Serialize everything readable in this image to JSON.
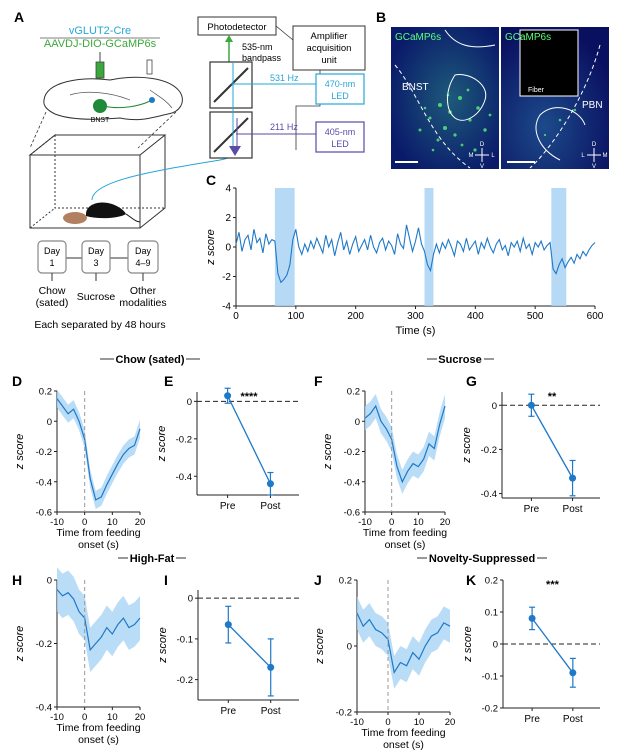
{
  "colors": {
    "trace": "#1f78c8",
    "band": "#a9d4f5",
    "cyan_label": "#27a6d8",
    "green_label": "#3aa83a",
    "purple_label": "#5b4aa8",
    "dot": "#1f78c8"
  },
  "panel_letters": [
    "A",
    "B",
    "C",
    "D",
    "E",
    "F",
    "G",
    "H",
    "I",
    "J",
    "K"
  ],
  "panel_a": {
    "line1": "vGLUT2-Cre",
    "line2": "AAVDJ-DIO-GCaMP6s",
    "bnst": "BNST",
    "photodetector": "Photodetector",
    "amp_line1": "Amplifier",
    "amp_line2": "acquisition",
    "amp_line3": "unit",
    "bandpass_line1": "535-nm",
    "bandpass_line2": "bandpass",
    "hz1": "531 Hz",
    "hz2": "211 Hz",
    "led1_line1": "470-nm",
    "led1_line2": "LED",
    "led2_line1": "405-nm",
    "led2_line2": "LED",
    "days": [
      {
        "top": "Day",
        "bottom": "1",
        "label": "Chow",
        "label2": "(sated)"
      },
      {
        "top": "Day",
        "bottom": "3",
        "label": "Sucrose",
        "label2": ""
      },
      {
        "top": "Day",
        "bottom": "4–9",
        "label": "Other",
        "label2": "modalities"
      }
    ],
    "separated": "Each separated by 48 hours"
  },
  "panel_b": {
    "left_title": "GCaMP6s",
    "right_title": "GCaMP6s",
    "bnst": "BNST",
    "pbn": "PBN",
    "fiber": "Fiber",
    "compass": {
      "d": "D",
      "v": "V",
      "m": "M",
      "l": "L"
    }
  },
  "group_titles": {
    "chow": "Chow (sated)",
    "sucrose": "Sucrose",
    "highfat": "High-Fat",
    "novelty": "Novelty-Suppressed"
  },
  "labels": {
    "zscore": "z score",
    "time_s": "Time (s)",
    "feed_line1": "Time from feeding",
    "feed_line2": "onset (s)",
    "pre": "Pre",
    "post": "Post"
  },
  "chart_data": [
    {
      "panel": "C",
      "type": "line",
      "xlabel": "Time (s)",
      "ylabel": "z score",
      "xlim": [
        0,
        600
      ],
      "ylim": [
        -4,
        4
      ],
      "xticks": [
        0,
        100,
        200,
        300,
        400,
        500,
        600
      ],
      "yticks": [
        -4,
        -2,
        0,
        2,
        4
      ],
      "feeding_bands": [
        [
          65,
          98
        ],
        [
          315,
          330
        ],
        [
          527,
          552
        ]
      ],
      "x": [
        0,
        5,
        10,
        15,
        20,
        25,
        30,
        35,
        40,
        45,
        50,
        55,
        60,
        65,
        70,
        75,
        80,
        85,
        90,
        95,
        100,
        105,
        110,
        115,
        120,
        125,
        130,
        135,
        140,
        145,
        150,
        155,
        160,
        165,
        170,
        175,
        180,
        185,
        190,
        195,
        200,
        205,
        210,
        215,
        220,
        225,
        230,
        235,
        240,
        245,
        250,
        255,
        260,
        265,
        270,
        275,
        280,
        285,
        290,
        295,
        300,
        305,
        310,
        315,
        320,
        325,
        330,
        335,
        340,
        345,
        350,
        355,
        360,
        365,
        370,
        375,
        380,
        385,
        390,
        395,
        400,
        405,
        410,
        415,
        420,
        425,
        430,
        435,
        440,
        445,
        450,
        455,
        460,
        465,
        470,
        475,
        480,
        485,
        490,
        495,
        500,
        505,
        510,
        515,
        520,
        525,
        530,
        535,
        540,
        545,
        550,
        555,
        560,
        565,
        570,
        575,
        580,
        585,
        590,
        595,
        600
      ],
      "y": [
        0.2,
        1.0,
        -0.3,
        0.5,
        0.8,
        -0.2,
        1.2,
        0.3,
        0.6,
        -0.4,
        0.9,
        0.2,
        0.5,
        0.4,
        -1.8,
        -2.4,
        -2.2,
        -1.9,
        -1.2,
        0.5,
        1.2,
        0.0,
        -0.5,
        0.2,
        -0.3,
        0.4,
        -0.1,
        0.6,
        0.1,
        -0.4,
        0.8,
        0.0,
        0.5,
        -0.6,
        0.3,
        1.0,
        -0.2,
        0.4,
        -0.5,
        0.2,
        0.7,
        -0.3,
        0.1,
        0.5,
        -0.2,
        0.8,
        0.0,
        -0.4,
        0.3,
        0.6,
        -0.2,
        0.4,
        0.1,
        -0.5,
        0.9,
        0.2,
        -0.1,
        1.5,
        0.6,
        -0.3,
        0.4,
        1.3,
        0.2,
        -0.3,
        -1.2,
        -1.6,
        -0.5,
        0.2,
        -0.4,
        0.3,
        -0.1,
        0.5,
        0.0,
        -0.6,
        0.4,
        0.2,
        -0.3,
        0.6,
        -0.2,
        0.1,
        0.4,
        -0.5,
        0.3,
        -0.1,
        0.6,
        0.0,
        -0.4,
        0.2,
        0.5,
        -0.2,
        0.1,
        -0.6,
        0.3,
        0.0,
        0.4,
        -0.3,
        0.6,
        -0.1,
        0.2,
        -0.5,
        0.3,
        0.0,
        0.4,
        -0.2,
        0.1,
        0.3,
        -1.5,
        -1.8,
        -1.2,
        -0.8,
        -1.4,
        -1.0,
        -0.7,
        -1.1,
        -0.5,
        -0.8,
        -0.3,
        -0.6,
        -0.2,
        0.1,
        0.3
      ]
    },
    {
      "panel": "D",
      "type": "line",
      "group": "Chow (sated)",
      "xlabel": "Time from feeding onset (s)",
      "ylabel": "z score",
      "xlim": [
        -10,
        20
      ],
      "ylim": [
        -0.6,
        0.2
      ],
      "xticks": [
        -10,
        0,
        10,
        20
      ],
      "yticks": [
        -0.6,
        -0.4,
        -0.2,
        0,
        0.2
      ],
      "x": [
        -10,
        -8,
        -6,
        -4,
        -2,
        0,
        2,
        4,
        6,
        8,
        10,
        12,
        14,
        16,
        18,
        20
      ],
      "mean": [
        0.15,
        0.1,
        0.05,
        0.08,
        0.0,
        -0.12,
        -0.38,
        -0.52,
        -0.5,
        -0.42,
        -0.35,
        -0.28,
        -0.22,
        -0.18,
        -0.16,
        -0.05
      ],
      "sem": 0.06
    },
    {
      "panel": "E",
      "type": "scatter",
      "group": "Chow (sated)",
      "categories": [
        "Pre",
        "Post"
      ],
      "values": [
        0.03,
        -0.44
      ],
      "errors": [
        0.04,
        0.06
      ],
      "ylim": [
        -0.5,
        0.05
      ],
      "yticks": [
        -0.4,
        -0.2,
        0
      ],
      "significance": "****"
    },
    {
      "panel": "F",
      "type": "line",
      "group": "Sucrose",
      "xlabel": "Time from feeding onset (s)",
      "ylabel": "z score",
      "xlim": [
        -10,
        20
      ],
      "ylim": [
        -0.6,
        0.2
      ],
      "xticks": [
        -10,
        0,
        10,
        20
      ],
      "yticks": [
        -0.6,
        -0.4,
        -0.2,
        0,
        0.2
      ],
      "x": [
        -10,
        -8,
        -6,
        -4,
        -2,
        0,
        2,
        4,
        6,
        8,
        10,
        12,
        14,
        16,
        18,
        20
      ],
      "mean": [
        0.02,
        0.05,
        0.1,
        0.0,
        -0.05,
        -0.12,
        -0.3,
        -0.4,
        -0.33,
        -0.28,
        -0.3,
        -0.25,
        -0.15,
        -0.18,
        -0.02,
        0.1
      ],
      "sem": 0.08
    },
    {
      "panel": "G",
      "type": "scatter",
      "group": "Sucrose",
      "categories": [
        "Pre",
        "Post"
      ],
      "values": [
        0.0,
        -0.33
      ],
      "errors": [
        0.05,
        0.08
      ],
      "ylim": [
        -0.42,
        0.06
      ],
      "yticks": [
        -0.4,
        -0.2,
        0
      ],
      "significance": "**"
    },
    {
      "panel": "H",
      "type": "line",
      "group": "High-Fat",
      "xlabel": "Time from feeding onset (s)",
      "ylabel": "z score",
      "xlim": [
        -10,
        20
      ],
      "ylim": [
        -0.4,
        0.0
      ],
      "xticks": [
        -10,
        0,
        10,
        20
      ],
      "yticks": [
        -0.4,
        -0.2,
        0
      ],
      "x": [
        -10,
        -8,
        -6,
        -4,
        -2,
        0,
        2,
        4,
        6,
        8,
        10,
        12,
        14,
        16,
        18,
        20
      ],
      "mean": [
        -0.03,
        -0.05,
        -0.04,
        -0.06,
        -0.1,
        -0.12,
        -0.22,
        -0.2,
        -0.18,
        -0.15,
        -0.17,
        -0.14,
        -0.12,
        -0.15,
        -0.14,
        -0.12
      ],
      "sem": 0.07
    },
    {
      "panel": "I",
      "type": "scatter",
      "group": "High-Fat",
      "categories": [
        "Pre",
        "Post"
      ],
      "values": [
        -0.065,
        -0.17
      ],
      "errors": [
        0.045,
        0.07
      ],
      "ylim": [
        -0.25,
        0.02
      ],
      "yticks": [
        -0.2,
        -0.1,
        0
      ]
    },
    {
      "panel": "J",
      "type": "line",
      "group": "Novelty-Suppressed",
      "xlabel": "Time from feeding onset (s)",
      "ylabel": "z score",
      "xlim": [
        -10,
        20
      ],
      "ylim": [
        -0.2,
        0.2
      ],
      "xticks": [
        -10,
        0,
        10,
        20
      ],
      "yticks": [
        -0.2,
        0,
        0.2
      ],
      "x": [
        -10,
        -8,
        -6,
        -4,
        -2,
        0,
        2,
        4,
        6,
        8,
        10,
        12,
        14,
        16,
        18,
        20
      ],
      "mean": [
        0.1,
        0.06,
        0.08,
        0.05,
        0.04,
        0.02,
        -0.08,
        -0.05,
        -0.06,
        -0.02,
        -0.04,
        0.0,
        0.03,
        0.04,
        0.07,
        0.06
      ],
      "sem": 0.05
    },
    {
      "panel": "K",
      "type": "scatter",
      "group": "Novelty-Suppressed",
      "categories": [
        "Pre",
        "Post"
      ],
      "values": [
        0.08,
        -0.09
      ],
      "errors": [
        0.035,
        0.045
      ],
      "ylim": [
        -0.2,
        0.2
      ],
      "yticks": [
        -0.2,
        -0.1,
        0,
        0.1,
        0.2
      ],
      "significance": "***"
    }
  ]
}
